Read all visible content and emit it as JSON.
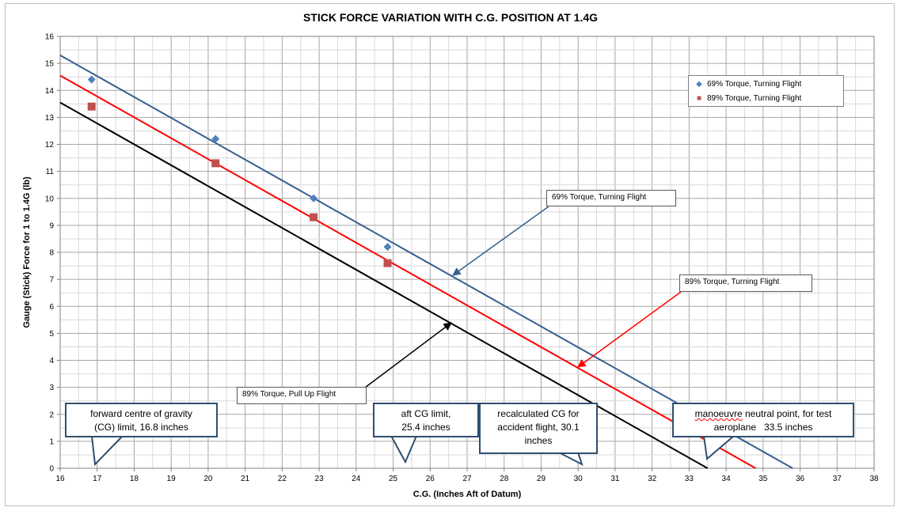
{
  "chart_data": {
    "type": "scatter",
    "title": "STICK FORCE VARIATION WITH C.G. POSITION AT 1.4G",
    "xlabel": "C.G. (Inches Aft of Datum)",
    "ylabel": "Gauge (Stick) Force for 1 to 1.4G (lb)",
    "xlim": [
      16,
      38
    ],
    "ylim": [
      0,
      16
    ],
    "x_ticks": [
      "16",
      "17",
      "18",
      "19",
      "20",
      "21",
      "22",
      "23",
      "24",
      "25",
      "26",
      "27",
      "28",
      "29",
      "30",
      "31",
      "32",
      "33",
      "34",
      "35",
      "36",
      "37",
      "38"
    ],
    "y_ticks": [
      "0",
      "1",
      "2",
      "3",
      "4",
      "5",
      "6",
      "7",
      "8",
      "9",
      "10",
      "11",
      "12",
      "13",
      "14",
      "15",
      "16"
    ],
    "grid": true,
    "legend_position": "top-right",
    "series": [
      {
        "name": "69% Torque, Turning Flight",
        "color": "#4f81bd",
        "marker": "diamond",
        "points": [
          [
            16.85,
            14.4
          ],
          [
            20.2,
            12.2
          ],
          [
            22.85,
            10.0
          ],
          [
            24.85,
            8.2
          ]
        ]
      },
      {
        "name": "89% Torque, Turning Flight",
        "color": "#c0504d",
        "marker": "square",
        "points": [
          [
            16.85,
            13.4
          ],
          [
            20.2,
            11.3
          ],
          [
            22.85,
            9.3
          ],
          [
            24.85,
            7.6
          ]
        ]
      }
    ],
    "trendlines": [
      {
        "label": "69% Torque, Turning Flight",
        "color": "#365f91",
        "from": [
          16,
          15.3
        ],
        "to": [
          35.8,
          0
        ]
      },
      {
        "label": "89% Torque, Turning Flight",
        "color": "#ff0000",
        "from": [
          16,
          14.55
        ],
        "to": [
          34.8,
          0
        ]
      },
      {
        "label": "89% Torque, Pull Up Flight",
        "color": "#000000",
        "from": [
          16,
          13.55
        ],
        "to": [
          33.5,
          0
        ]
      }
    ],
    "annotations": {
      "blue_callout": "69% Torque, Turning Flight",
      "red_callout": "89% Torque, Turning Flight",
      "black_callout": "89% Torque, Pull Up Flight",
      "note_forward_cg": [
        "forward centre of gravity",
        "(CG) limit, 16.8 inches"
      ],
      "note_aft_cg": [
        "aft CG limit,",
        "25.4 inches"
      ],
      "note_recalculated_cg": [
        "recalculated CG for",
        "accident flight, 30.1",
        "inches"
      ],
      "note_neutral_point_word": "manoeuvre",
      "note_neutral_point_rest": " neutral point, for test",
      "note_neutral_point_line2": "aeroplane   33.5 inches"
    }
  }
}
